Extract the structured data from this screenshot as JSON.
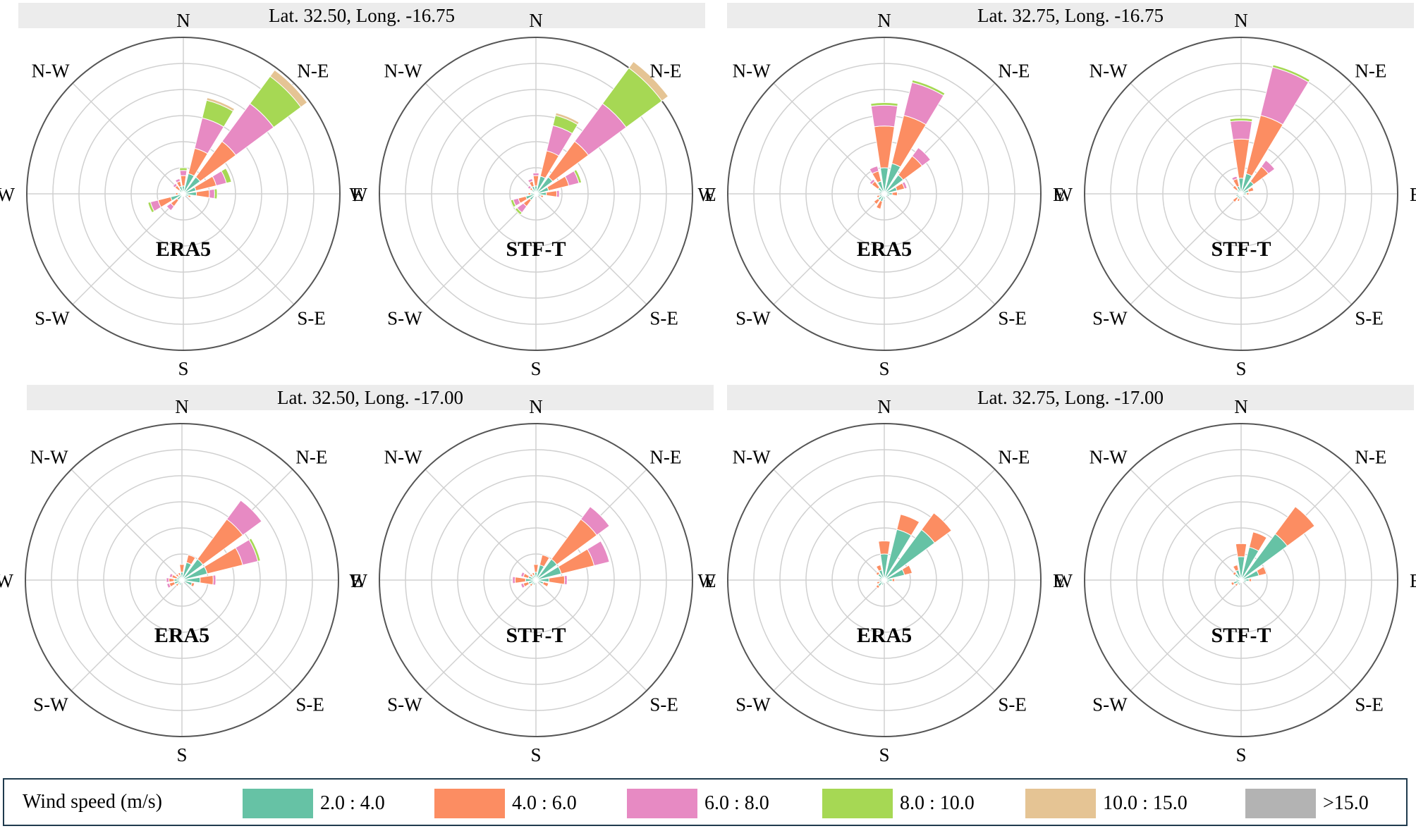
{
  "panels": [
    {
      "title": "Lat. 32.50, Long. -16.75"
    },
    {
      "title": "Lat. 32.75, Long. -16.75"
    },
    {
      "title": "Lat. 32.50, Long. -17.00"
    },
    {
      "title": "Lat. 32.75, Long. -17.00"
    }
  ],
  "colors": {
    "bins": [
      "#66c2a5",
      "#fc8d62",
      "#e78ac3",
      "#a6d854",
      "#e5c494",
      "#b3b3b3"
    ],
    "axis": "#555555",
    "grid": "#d0d0d0",
    "title_bg": "#ececec",
    "legend_border": "#1f3a4d"
  },
  "legend": {
    "title": "Wind speed (m/s)",
    "items": [
      "2.0 : 4.0",
      "4.0 : 6.0",
      "6.0 : 8.0",
      "8.0 : 10.0",
      "10.0 : 15.0",
      ">15.0"
    ]
  },
  "chart_data": [
    {
      "type": "windrose",
      "panel": 0,
      "label": "ERA5",
      "directions": [
        "N",
        "N-E",
        "E",
        "S-E",
        "S",
        "S-W",
        "W",
        "N-W"
      ],
      "speed_bins": [
        "2.0 : 4.0",
        "4.0 : 6.0",
        "6.0 : 8.0",
        "8.0 : 10.0",
        "10.0 : 15.0",
        ">15.0"
      ],
      "sector_angles_deg": [
        0,
        22.5,
        45,
        67.5,
        90,
        112.5,
        135,
        157.5,
        180,
        202.5,
        225,
        247.5,
        270,
        292.5,
        315,
        337.5
      ],
      "radius_max": 6,
      "rings": 6,
      "freq": [
        [
          0.3,
          0.4,
          0.2,
          0.1,
          0,
          0
        ],
        [
          0.8,
          1.0,
          1.2,
          0.7,
          0.1,
          0
        ],
        [
          0.8,
          1.7,
          1.8,
          1.3,
          0.3,
          0
        ],
        [
          0.5,
          0.8,
          0.4,
          0.2,
          0,
          0
        ],
        [
          0.5,
          0.5,
          0.2,
          0.1,
          0,
          0
        ],
        [
          0.2,
          0.1,
          0,
          0,
          0,
          0
        ],
        [
          0.1,
          0,
          0,
          0,
          0,
          0
        ],
        [
          0.1,
          0,
          0,
          0,
          0,
          0
        ],
        [
          0.1,
          0,
          0,
          0,
          0,
          0
        ],
        [
          0.1,
          0,
          0,
          0,
          0,
          0
        ],
        [
          0.3,
          0.3,
          0.2,
          0,
          0,
          0
        ],
        [
          0.5,
          0.5,
          0.3,
          0.1,
          0,
          0
        ],
        [
          0.2,
          0.1,
          0,
          0,
          0,
          0
        ],
        [
          0.1,
          0,
          0,
          0,
          0,
          0
        ],
        [
          0.2,
          0.2,
          0.1,
          0,
          0,
          0
        ],
        [
          0.3,
          0.2,
          0.1,
          0,
          0,
          0
        ]
      ]
    },
    {
      "type": "windrose",
      "panel": 0,
      "label": "STF-T",
      "directions": [
        "N",
        "N-E",
        "E",
        "S-E",
        "S",
        "S-W",
        "W",
        "N-W"
      ],
      "speed_bins": [
        "2.0 : 4.0",
        "4.0 : 6.0",
        "6.0 : 8.0",
        "8.0 : 10.0",
        "10.0 : 15.0",
        ">15.0"
      ],
      "sector_angles_deg": [
        0,
        22.5,
        45,
        67.5,
        90,
        112.5,
        135,
        157.5,
        180,
        202.5,
        225,
        247.5,
        270,
        292.5,
        315,
        337.5
      ],
      "radius_max": 6,
      "rings": 6,
      "freq": [
        [
          0.3,
          0.4,
          0.1,
          0,
          0,
          0
        ],
        [
          0.7,
          1.0,
          1.0,
          0.4,
          0.1,
          0
        ],
        [
          0.8,
          1.7,
          1.8,
          1.7,
          0.3,
          0
        ],
        [
          0.5,
          0.8,
          0.4,
          0.1,
          0,
          0
        ],
        [
          0.4,
          0.4,
          0.1,
          0,
          0,
          0
        ],
        [
          0.2,
          0.1,
          0,
          0,
          0,
          0
        ],
        [
          0.1,
          0,
          0,
          0,
          0,
          0
        ],
        [
          0.1,
          0,
          0,
          0,
          0,
          0
        ],
        [
          0.1,
          0,
          0,
          0,
          0,
          0
        ],
        [
          0.1,
          0,
          0,
          0,
          0,
          0
        ],
        [
          0.3,
          0.3,
          0.3,
          0.1,
          0,
          0
        ],
        [
          0.4,
          0.3,
          0.2,
          0.1,
          0,
          0
        ],
        [
          0.2,
          0.1,
          0,
          0,
          0,
          0
        ],
        [
          0.1,
          0,
          0,
          0,
          0,
          0
        ],
        [
          0.2,
          0.1,
          0.1,
          0,
          0,
          0
        ],
        [
          0.3,
          0.2,
          0.1,
          0,
          0,
          0
        ]
      ]
    },
    {
      "type": "windrose",
      "panel": 1,
      "label": "ERA5",
      "directions": [
        "N",
        "N-E",
        "E",
        "S-E",
        "S",
        "S-W",
        "W",
        "N-W"
      ],
      "speed_bins": [
        "2.0 : 4.0",
        "4.0 : 6.0",
        "6.0 : 8.0",
        "8.0 : 10.0",
        "10.0 : 15.0",
        ">15.0"
      ],
      "sector_angles_deg": [
        0,
        22.5,
        45,
        67.5,
        90,
        112.5,
        135,
        157.5,
        180,
        202.5,
        225,
        247.5,
        270,
        292.5,
        315,
        337.5
      ],
      "radius_max": 6,
      "rings": 6,
      "freq": [
        [
          1.0,
          1.6,
          0.8,
          0.1,
          0,
          0
        ],
        [
          1.2,
          1.9,
          1.3,
          0.1,
          0,
          0
        ],
        [
          0.9,
          0.9,
          0.4,
          0,
          0,
          0
        ],
        [
          0.5,
          0.3,
          0.1,
          0,
          0,
          0
        ],
        [
          0.3,
          0.2,
          0,
          0,
          0,
          0
        ],
        [
          0.2,
          0,
          0,
          0,
          0,
          0
        ],
        [
          0.1,
          0,
          0,
          0,
          0,
          0
        ],
        [
          0.1,
          0,
          0,
          0,
          0,
          0
        ],
        [
          0.2,
          0,
          0,
          0,
          0,
          0
        ],
        [
          0.3,
          0.3,
          0,
          0,
          0,
          0
        ],
        [
          0.3,
          0.2,
          0,
          0,
          0,
          0
        ],
        [
          0.2,
          0.1,
          0,
          0,
          0,
          0
        ],
        [
          0.1,
          0,
          0,
          0,
          0,
          0
        ],
        [
          0.2,
          0,
          0,
          0,
          0,
          0
        ],
        [
          0.3,
          0.3,
          0.1,
          0,
          0,
          0
        ],
        [
          0.5,
          0.4,
          0.2,
          0,
          0,
          0
        ]
      ]
    },
    {
      "type": "windrose",
      "panel": 1,
      "label": "STF-T",
      "directions": [
        "N",
        "N-E",
        "E",
        "S-E",
        "S",
        "S-W",
        "W",
        "N-W"
      ],
      "speed_bins": [
        "2.0 : 4.0",
        "4.0 : 6.0",
        "6.0 : 8.0",
        "8.0 : 10.0",
        "10.0 : 15.0",
        ">15.0"
      ],
      "sector_angles_deg": [
        0,
        22.5,
        45,
        67.5,
        90,
        112.5,
        135,
        157.5,
        180,
        202.5,
        225,
        247.5,
        270,
        292.5,
        315,
        337.5
      ],
      "radius_max": 6,
      "rings": 6,
      "freq": [
        [
          0.6,
          1.5,
          0.7,
          0.1,
          0,
          0
        ],
        [
          0.8,
          2.3,
          1.9,
          0.1,
          0,
          0
        ],
        [
          0.6,
          0.7,
          0.3,
          0,
          0,
          0
        ],
        [
          0.3,
          0.2,
          0,
          0,
          0,
          0
        ],
        [
          0.2,
          0.1,
          0,
          0,
          0,
          0
        ],
        [
          0.1,
          0,
          0,
          0,
          0,
          0
        ],
        [
          0.1,
          0,
          0,
          0,
          0,
          0
        ],
        [
          0.1,
          0,
          0,
          0,
          0,
          0
        ],
        [
          0.1,
          0,
          0,
          0,
          0,
          0
        ],
        [
          0.2,
          0.1,
          0,
          0,
          0,
          0
        ],
        [
          0.2,
          0.2,
          0,
          0,
          0,
          0
        ],
        [
          0.2,
          0,
          0,
          0,
          0,
          0
        ],
        [
          0.1,
          0,
          0,
          0,
          0,
          0
        ],
        [
          0.1,
          0,
          0,
          0,
          0,
          0
        ],
        [
          0.2,
          0.2,
          0,
          0,
          0,
          0
        ],
        [
          0.3,
          0.3,
          0.1,
          0,
          0,
          0
        ]
      ]
    },
    {
      "type": "windrose",
      "panel": 2,
      "label": "ERA5",
      "directions": [
        "N",
        "N-E",
        "E",
        "S-E",
        "S",
        "S-W",
        "W",
        "N-W"
      ],
      "speed_bins": [
        "2.0 : 4.0",
        "4.0 : 6.0",
        "6.0 : 8.0",
        "8.0 : 10.0",
        "10.0 : 15.0",
        ">15.0"
      ],
      "sector_angles_deg": [
        0,
        22.5,
        45,
        67.5,
        90,
        112.5,
        135,
        157.5,
        180,
        202.5,
        225,
        247.5,
        270,
        292.5,
        315,
        337.5
      ],
      "radius_max": 6,
      "rings": 6,
      "freq": [
        [
          0.3,
          0.3,
          0,
          0,
          0,
          0
        ],
        [
          0.7,
          0.3,
          0,
          0,
          0,
          0
        ],
        [
          1.0,
          1.9,
          0.9,
          0,
          0,
          0
        ],
        [
          1.0,
          1.4,
          0.6,
          0.1,
          0,
          0
        ],
        [
          0.7,
          0.5,
          0.1,
          0,
          0,
          0
        ],
        [
          0.4,
          0.1,
          0,
          0,
          0,
          0
        ],
        [
          0.1,
          0,
          0,
          0,
          0,
          0
        ],
        [
          0.1,
          0,
          0,
          0,
          0,
          0
        ],
        [
          0.1,
          0,
          0,
          0,
          0,
          0
        ],
        [
          0.2,
          0,
          0,
          0,
          0,
          0
        ],
        [
          0.2,
          0.1,
          0,
          0,
          0,
          0
        ],
        [
          0.3,
          0.2,
          0.1,
          0,
          0,
          0
        ],
        [
          0.3,
          0.2,
          0.1,
          0,
          0,
          0
        ],
        [
          0.2,
          0.2,
          0.1,
          0,
          0,
          0
        ],
        [
          0.2,
          0.1,
          0,
          0,
          0,
          0
        ],
        [
          0.2,
          0.1,
          0,
          0,
          0,
          0
        ]
      ]
    },
    {
      "type": "windrose",
      "panel": 2,
      "label": "STF-T",
      "directions": [
        "N",
        "N-E",
        "E",
        "S-E",
        "S",
        "S-W",
        "W",
        "N-W"
      ],
      "speed_bins": [
        "2.0 : 4.0",
        "4.0 : 6.0",
        "6.0 : 8.0",
        "8.0 : 10.0",
        "10.0 : 15.0",
        ">15.0"
      ],
      "sector_angles_deg": [
        0,
        22.5,
        45,
        67.5,
        90,
        112.5,
        135,
        157.5,
        180,
        202.5,
        225,
        247.5,
        270,
        292.5,
        315,
        337.5
      ],
      "radius_max": 6,
      "rings": 6,
      "freq": [
        [
          0.3,
          0.3,
          0,
          0,
          0,
          0
        ],
        [
          0.6,
          0.4,
          0,
          0,
          0,
          0
        ],
        [
          1.0,
          1.9,
          0.6,
          0,
          0,
          0
        ],
        [
          1.0,
          1.3,
          0.6,
          0,
          0,
          0
        ],
        [
          0.5,
          0.6,
          0.1,
          0,
          0,
          0
        ],
        [
          0.3,
          0.2,
          0,
          0,
          0,
          0
        ],
        [
          0.1,
          0,
          0,
          0,
          0,
          0
        ],
        [
          0.1,
          0,
          0,
          0,
          0,
          0
        ],
        [
          0.1,
          0,
          0,
          0,
          0,
          0
        ],
        [
          0.2,
          0,
          0,
          0,
          0,
          0
        ],
        [
          0.2,
          0.1,
          0,
          0,
          0,
          0
        ],
        [
          0.3,
          0.2,
          0.1,
          0,
          0,
          0
        ],
        [
          0.4,
          0.4,
          0.1,
          0,
          0,
          0
        ],
        [
          0.3,
          0.2,
          0.1,
          0,
          0,
          0
        ],
        [
          0.2,
          0.1,
          0,
          0,
          0,
          0
        ],
        [
          0.2,
          0.1,
          0,
          0,
          0,
          0
        ]
      ]
    },
    {
      "type": "windrose",
      "panel": 3,
      "label": "ERA5",
      "directions": [
        "N",
        "N-E",
        "E",
        "S-E",
        "S",
        "S-W",
        "W",
        "N-W"
      ],
      "speed_bins": [
        "2.0 : 4.0",
        "4.0 : 6.0",
        "6.0 : 8.0",
        "8.0 : 10.0",
        "10.0 : 15.0",
        ">15.0"
      ],
      "sector_angles_deg": [
        0,
        22.5,
        45,
        67.5,
        90,
        112.5,
        135,
        157.5,
        180,
        202.5,
        225,
        247.5,
        270,
        292.5,
        315,
        337.5
      ],
      "radius_max": 6,
      "rings": 6,
      "freq": [
        [
          1.0,
          0.5,
          0,
          0,
          0,
          0
        ],
        [
          2.0,
          0.6,
          0,
          0,
          0,
          0
        ],
        [
          2.4,
          0.8,
          0,
          0,
          0,
          0
        ],
        [
          0.8,
          0.3,
          0,
          0,
          0,
          0
        ],
        [
          0.3,
          0.1,
          0,
          0,
          0,
          0
        ],
        [
          0.2,
          0,
          0,
          0,
          0,
          0
        ],
        [
          0.1,
          0,
          0,
          0,
          0,
          0
        ],
        [
          0.1,
          0,
          0,
          0,
          0,
          0
        ],
        [
          0.1,
          0,
          0,
          0,
          0,
          0
        ],
        [
          0.2,
          0,
          0,
          0,
          0,
          0
        ],
        [
          0.3,
          0.1,
          0,
          0,
          0,
          0
        ],
        [
          0.2,
          0.1,
          0,
          0,
          0,
          0
        ],
        [
          0.1,
          0,
          0,
          0,
          0,
          0
        ],
        [
          0.2,
          0,
          0,
          0,
          0,
          0
        ],
        [
          0.3,
          0.1,
          0,
          0,
          0,
          0
        ],
        [
          0.4,
          0.2,
          0,
          0,
          0,
          0
        ]
      ]
    },
    {
      "type": "windrose",
      "panel": 3,
      "label": "STF-T",
      "directions": [
        "N",
        "N-E",
        "E",
        "S-E",
        "S",
        "S-W",
        "W",
        "N-W"
      ],
      "speed_bins": [
        "2.0 : 4.0",
        "4.0 : 6.0",
        "6.0 : 8.0",
        "8.0 : 10.0",
        "10.0 : 15.0",
        ">15.0"
      ],
      "sector_angles_deg": [
        0,
        22.5,
        45,
        67.5,
        90,
        112.5,
        135,
        157.5,
        180,
        202.5,
        225,
        247.5,
        270,
        292.5,
        315,
        337.5
      ],
      "radius_max": 6,
      "rings": 6,
      "freq": [
        [
          0.9,
          0.5,
          0,
          0,
          0,
          0
        ],
        [
          1.3,
          0.6,
          0,
          0,
          0,
          0
        ],
        [
          2.2,
          1.3,
          0,
          0,
          0,
          0
        ],
        [
          0.7,
          0.3,
          0,
          0,
          0,
          0
        ],
        [
          0.3,
          0.1,
          0,
          0,
          0,
          0
        ],
        [
          0.2,
          0,
          0,
          0,
          0,
          0
        ],
        [
          0.1,
          0,
          0,
          0,
          0,
          0
        ],
        [
          0.1,
          0,
          0,
          0,
          0,
          0
        ],
        [
          0.1,
          0,
          0,
          0,
          0,
          0
        ],
        [
          0.2,
          0,
          0,
          0,
          0,
          0
        ],
        [
          0.2,
          0.1,
          0,
          0,
          0,
          0
        ],
        [
          0.3,
          0.1,
          0,
          0,
          0,
          0
        ],
        [
          0.2,
          0,
          0,
          0,
          0,
          0
        ],
        [
          0.1,
          0,
          0,
          0,
          0,
          0
        ],
        [
          0.3,
          0.1,
          0,
          0,
          0,
          0
        ],
        [
          0.4,
          0.2,
          0,
          0,
          0,
          0
        ]
      ]
    }
  ]
}
